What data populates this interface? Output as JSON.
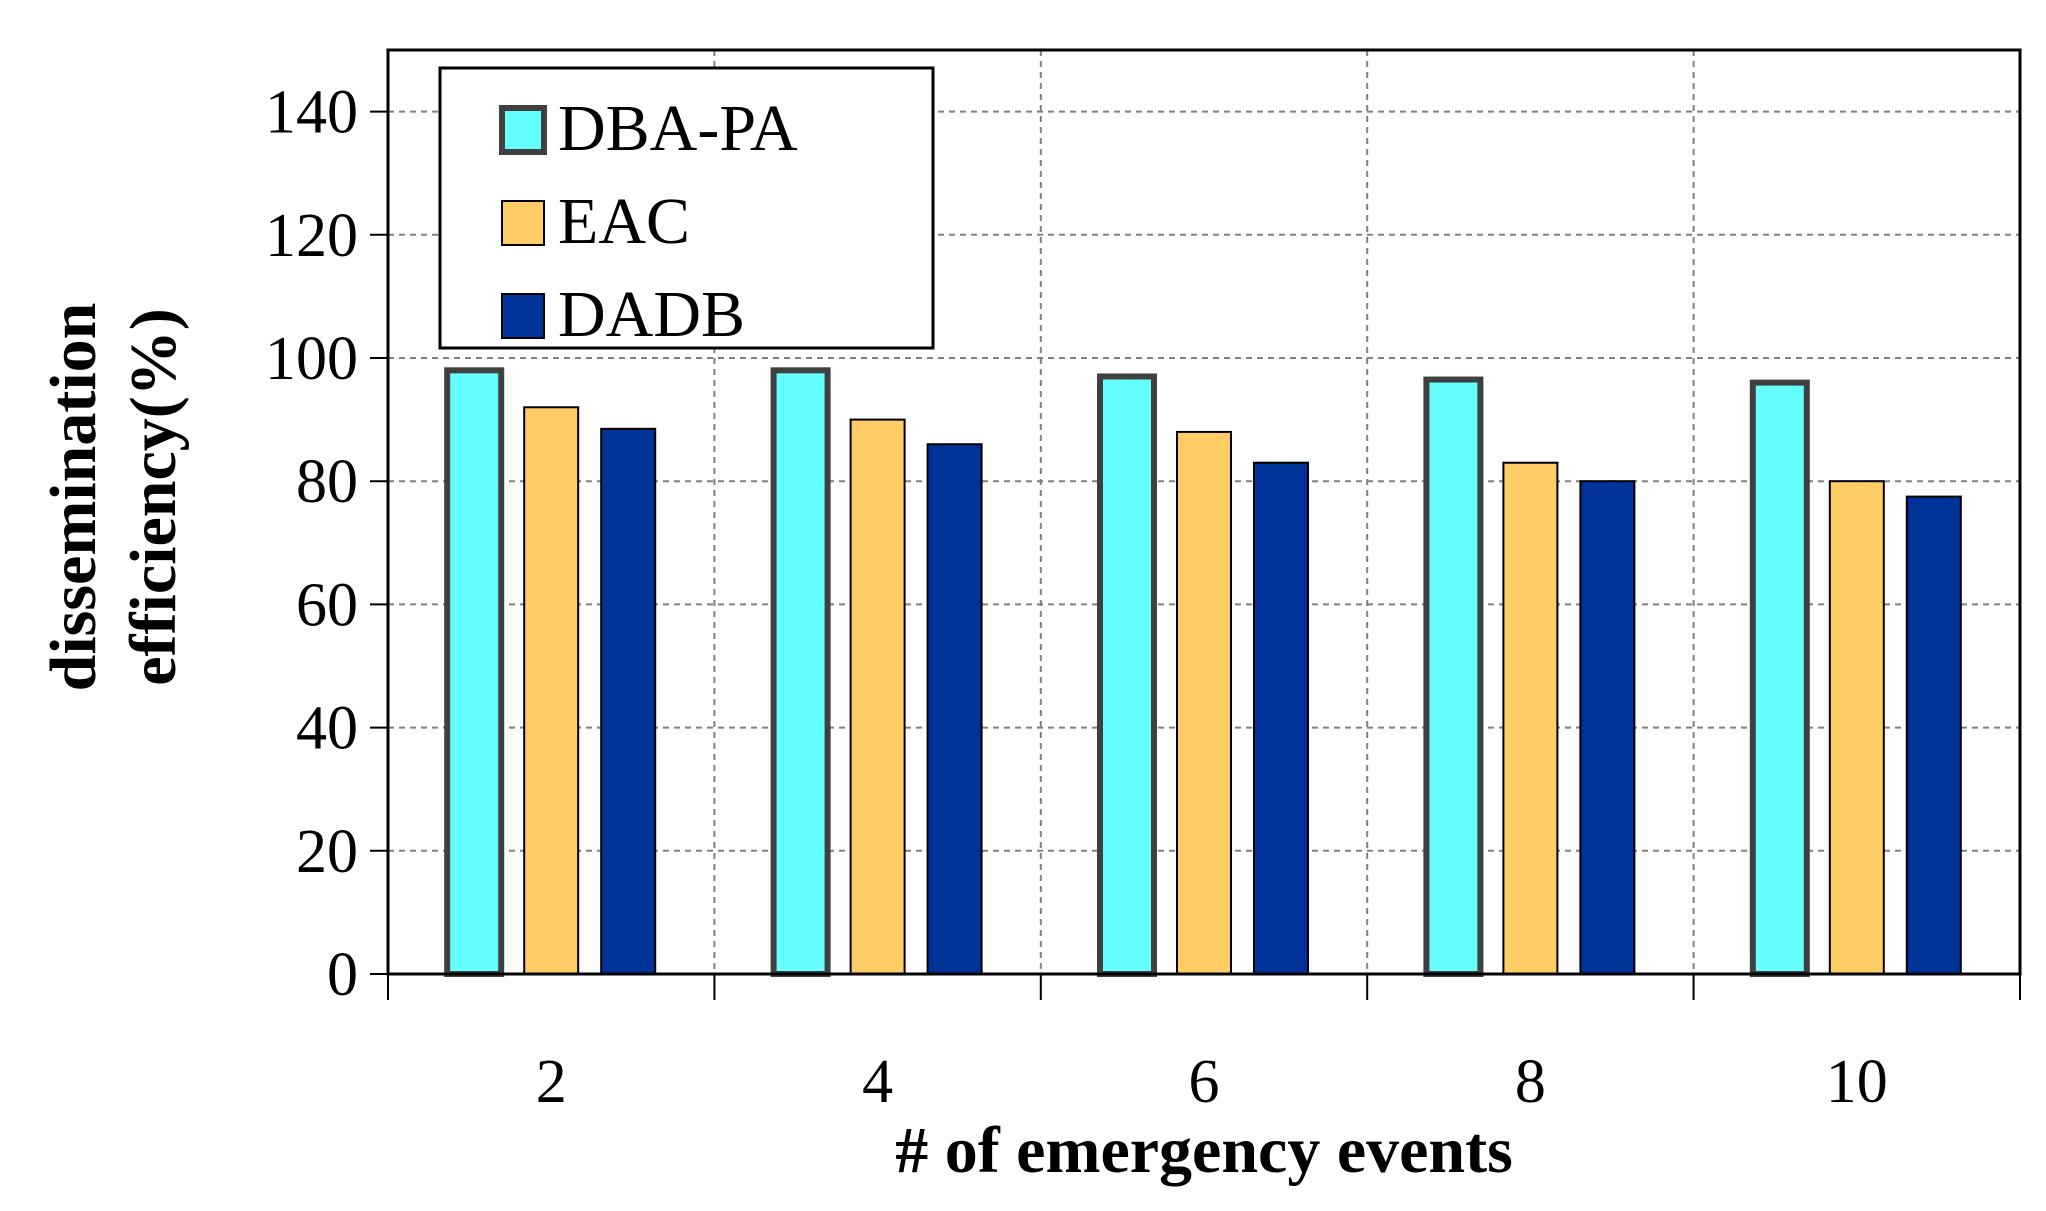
{
  "chart_data": {
    "type": "bar",
    "categories": [
      "2",
      "4",
      "6",
      "8",
      "10"
    ],
    "series": [
      {
        "name": "DBA-PA",
        "values": [
          98,
          98,
          97,
          96.5,
          96
        ],
        "color": "#66FFFF"
      },
      {
        "name": "EAC",
        "values": [
          92,
          90,
          88,
          83,
          80
        ],
        "color": "#FFCC66"
      },
      {
        "name": "DADB",
        "values": [
          88.5,
          86,
          83,
          80,
          77.5
        ],
        "color": "#003399"
      }
    ],
    "title": "",
    "xlabel": "# of emergency events",
    "ylabel": "dissemination efficiency(%)",
    "ylabel_lines": [
      "dissemination",
      "efficiency(%)"
    ],
    "ylim": [
      0,
      140
    ],
    "yticks": [
      0,
      20,
      40,
      60,
      80,
      100,
      120,
      140
    ],
    "grid": true,
    "legend_position": "top-left"
  }
}
